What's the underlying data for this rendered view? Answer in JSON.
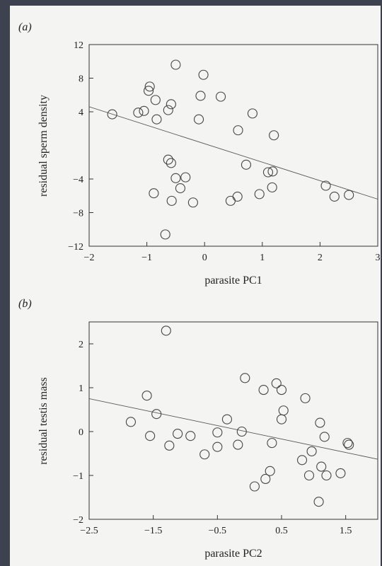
{
  "chart_data": [
    {
      "type": "scatter",
      "panel_label": "(a)",
      "xlabel": "parasite PC1",
      "ylabel": "residual sperm density",
      "xlim": [
        -2,
        3
      ],
      "ylim": [
        -12,
        12
      ],
      "x_ticks": [
        -2,
        -1,
        0,
        1,
        2,
        3
      ],
      "x_tick_labels": [
        "−2",
        "−1",
        "0",
        "1",
        "2",
        "3"
      ],
      "y_ticks": [
        -12,
        -8,
        -4,
        4,
        8,
        12
      ],
      "y_tick_labels": [
        "−12",
        "−8",
        "−4",
        "4",
        "8",
        "12"
      ],
      "grid": false,
      "points": [
        {
          "x": -1.6,
          "y": 3.7
        },
        {
          "x": -1.15,
          "y": 3.9
        },
        {
          "x": -1.05,
          "y": 4.1
        },
        {
          "x": -0.97,
          "y": 6.5
        },
        {
          "x": -0.95,
          "y": 7.0
        },
        {
          "x": -0.85,
          "y": 5.4
        },
        {
          "x": -0.83,
          "y": 3.1
        },
        {
          "x": -0.88,
          "y": -5.7
        },
        {
          "x": -0.63,
          "y": 4.2
        },
        {
          "x": -0.58,
          "y": 4.9
        },
        {
          "x": -0.5,
          "y": 9.6
        },
        {
          "x": -0.63,
          "y": -1.7
        },
        {
          "x": -0.58,
          "y": -2.1
        },
        {
          "x": -0.5,
          "y": -3.9
        },
        {
          "x": -0.42,
          "y": -5.1
        },
        {
          "x": -0.33,
          "y": -3.8
        },
        {
          "x": -0.57,
          "y": -6.6
        },
        {
          "x": -0.68,
          "y": -10.6
        },
        {
          "x": -0.2,
          "y": -6.8
        },
        {
          "x": -0.1,
          "y": 3.1
        },
        {
          "x": -0.07,
          "y": 5.9
        },
        {
          "x": -0.02,
          "y": 8.4
        },
        {
          "x": 0.28,
          "y": 5.8
        },
        {
          "x": 0.45,
          "y": -6.6
        },
        {
          "x": 0.57,
          "y": -6.1
        },
        {
          "x": 0.58,
          "y": 1.8
        },
        {
          "x": 0.72,
          "y": -2.3
        },
        {
          "x": 0.83,
          "y": 3.8
        },
        {
          "x": 0.95,
          "y": -5.8
        },
        {
          "x": 1.1,
          "y": -3.2
        },
        {
          "x": 1.18,
          "y": -3.1
        },
        {
          "x": 1.2,
          "y": 1.2
        },
        {
          "x": 1.17,
          "y": -5.0
        },
        {
          "x": 2.1,
          "y": -4.8
        },
        {
          "x": 2.25,
          "y": -6.1
        },
        {
          "x": 2.5,
          "y": -5.9
        }
      ],
      "fit_line": {
        "x": [
          -2,
          3
        ],
        "y": [
          4.6,
          -6.4
        ]
      }
    },
    {
      "type": "scatter",
      "panel_label": "(b)",
      "xlabel": "parasite PC2",
      "ylabel": "residual testis mass",
      "xlim": [
        -2.5,
        2
      ],
      "ylim": [
        -2,
        2.5
      ],
      "x_ticks": [
        -2.5,
        -1.5,
        -0.5,
        0.5,
        1.5
      ],
      "x_tick_labels": [
        "−2.5",
        "−1.5",
        "−0.5",
        "0.5",
        "1.5"
      ],
      "y_ticks": [
        -2,
        -1,
        0,
        1,
        2
      ],
      "y_tick_labels": [
        "−2",
        "−1",
        "0",
        "1",
        "2"
      ],
      "grid": false,
      "points": [
        {
          "x": -1.85,
          "y": 0.22
        },
        {
          "x": -1.6,
          "y": 0.82
        },
        {
          "x": -1.55,
          "y": -0.1
        },
        {
          "x": -1.45,
          "y": 0.4
        },
        {
          "x": -1.3,
          "y": 2.3
        },
        {
          "x": -1.25,
          "y": -0.32
        },
        {
          "x": -1.12,
          "y": -0.05
        },
        {
          "x": -0.92,
          "y": -0.1
        },
        {
          "x": -0.7,
          "y": -0.52
        },
        {
          "x": -0.5,
          "y": -0.02
        },
        {
          "x": -0.5,
          "y": -0.35
        },
        {
          "x": -0.35,
          "y": 0.28
        },
        {
          "x": -0.18,
          "y": -0.3
        },
        {
          "x": -0.12,
          "y": 0.0
        },
        {
          "x": -0.07,
          "y": 1.22
        },
        {
          "x": 0.08,
          "y": -1.25
        },
        {
          "x": 0.22,
          "y": 0.95
        },
        {
          "x": 0.25,
          "y": -1.08
        },
        {
          "x": 0.32,
          "y": -0.9
        },
        {
          "x": 0.35,
          "y": -0.26
        },
        {
          "x": 0.42,
          "y": 1.1
        },
        {
          "x": 0.5,
          "y": 0.95
        },
        {
          "x": 0.5,
          "y": 0.28
        },
        {
          "x": 0.53,
          "y": 0.48
        },
        {
          "x": 0.82,
          "y": -0.65
        },
        {
          "x": 0.87,
          "y": 0.76
        },
        {
          "x": 0.93,
          "y": -1.0
        },
        {
          "x": 0.97,
          "y": -0.45
        },
        {
          "x": 1.1,
          "y": 0.2
        },
        {
          "x": 1.12,
          "y": -0.8
        },
        {
          "x": 1.17,
          "y": -0.12
        },
        {
          "x": 1.2,
          "y": -1.0
        },
        {
          "x": 1.08,
          "y": -1.6
        },
        {
          "x": 1.42,
          "y": -0.95
        },
        {
          "x": 1.53,
          "y": -0.26
        },
        {
          "x": 1.55,
          "y": -0.3
        }
      ],
      "fit_line": {
        "x": [
          -2.5,
          2
        ],
        "y": [
          0.75,
          -0.63
        ]
      }
    }
  ]
}
